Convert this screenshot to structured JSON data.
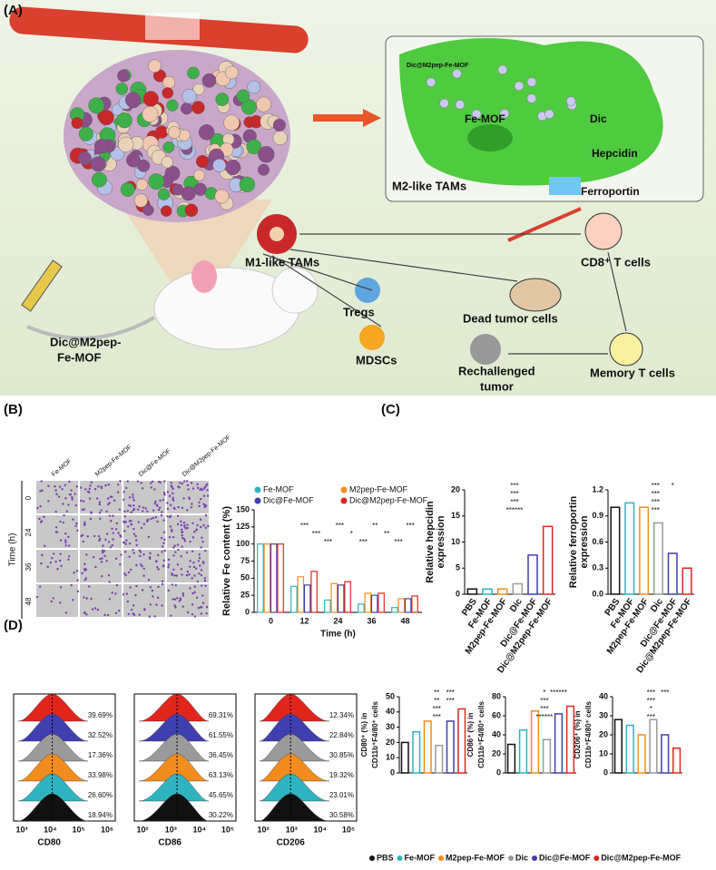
{
  "panel_labels": [
    "(A)",
    "(B)",
    "(C)",
    "(D)"
  ],
  "diagram": {
    "labels": [
      {
        "lines": [
          "Dic@M2pep-Fe-MOF"
        ]
      },
      {
        "lines": [
          "Fe-MOF"
        ]
      },
      {
        "lines": [
          "Dic"
        ]
      },
      {
        "lines": [
          "Hepcidin"
        ]
      },
      {
        "lines": [
          "M2-like TAMs"
        ]
      },
      {
        "lines": [
          "Ferroportin"
        ]
      },
      {
        "lines": [
          "M1-like TAMs"
        ]
      },
      {
        "lines": [
          "CD8⁺ T cells"
        ]
      },
      {
        "lines": [
          "Tregs"
        ]
      },
      {
        "lines": [
          "Dead tumor cells"
        ]
      },
      {
        "lines": [
          "MDSCs"
        ]
      },
      {
        "lines": [
          "Memory T cells"
        ]
      },
      {
        "lines": [
          "Rechallenged",
          "tumor"
        ]
      },
      {
        "lines": [
          "Dic@M2pep-",
          "Fe-MOF"
        ]
      }
    ]
  },
  "images_b": {
    "columns": [
      "Fe-MOF",
      "M2pep-Fe-MOF",
      "Dic@Fe-MOF",
      "Dic@M2pep-Fe-MOF"
    ],
    "rows": [
      "0",
      "24",
      "36",
      "48"
    ],
    "ylabel": "Time (h)"
  },
  "histograms_d": [
    {
      "xlabel": "CD80",
      "xticks": [
        "10³",
        "10⁴",
        "10⁵",
        "10⁶"
      ],
      "percents": [
        "39.69%",
        "32.52%",
        "17.36%",
        "33.98%",
        "26.60%",
        "18.94%"
      ]
    },
    {
      "xlabel": "CD86",
      "xticks": [
        "10²",
        "10³",
        "10⁴",
        "10⁵"
      ],
      "percents": [
        "69.31%",
        "61.55%",
        "36.45%",
        "63.13%",
        "45.65%",
        "30.22%"
      ]
    },
    {
      "xlabel": "CD206",
      "xticks": [
        "10²",
        "10³",
        "10⁴",
        "10⁵"
      ],
      "percents": [
        "12.34%",
        "22.84%",
        "30.85%",
        "19.32%",
        "23.01%",
        "30.58%"
      ]
    }
  ],
  "legend_d": [
    {
      "name": "PBS",
      "color": "#111111"
    },
    {
      "name": "Fe-MOF",
      "color": "#2fb3c0"
    },
    {
      "name": "M2pep-Fe-MOF",
      "color": "#f28c1e"
    },
    {
      "name": "Dic",
      "color": "#9a9a9a"
    },
    {
      "name": "Dic@Fe-MOF",
      "color": "#3f3fb0"
    },
    {
      "name": "Dic@M2pep-Fe-MOF",
      "color": "#e0261c"
    }
  ],
  "chart_data": [
    {
      "type": "bar",
      "xlabel": "Time (h)",
      "ylabel": [
        "Relative Fe content (%)"
      ],
      "categories": [
        "0",
        "12",
        "24",
        "36",
        "48"
      ],
      "series": [
        {
          "name": "Fe-MOF",
          "color": "#2fb3c0",
          "values": [
            100,
            38,
            18,
            12,
            7
          ]
        },
        {
          "name": "M2pep-Fe-MOF",
          "color": "#f28c1e",
          "values": [
            100,
            52,
            42,
            28,
            20
          ]
        },
        {
          "name": "Dic@Fe-MOF",
          "color": "#3f3fb0",
          "values": [
            100,
            40,
            40,
            25,
            20
          ]
        },
        {
          "name": "Dic@M2pep-Fe-MOF",
          "color": "#e0261c",
          "values": [
            100,
            60,
            45,
            28,
            24
          ]
        }
      ],
      "ylim": [
        0,
        150
      ],
      "yticks": [
        0,
        25,
        50,
        75,
        100,
        125,
        150
      ],
      "annotations": [
        "***",
        "***",
        "***",
        "***",
        "*",
        "***",
        "**",
        "**",
        "***",
        "***"
      ]
    },
    {
      "type": "bar",
      "ylabel": [
        "Relative hepcidin",
        "expression"
      ],
      "categories": [
        "PBS",
        "Fe-MOF",
        "M2pep-Fe-MOF",
        "Dic",
        "Dic@Fe-MOF",
        "Dic@M2pep-Fe-MOF"
      ],
      "values": [
        1,
        1,
        1,
        2,
        7.5,
        13
      ],
      "colors": [
        "#111111",
        "#2fb3c0",
        "#f28c1e",
        "#9a9a9a",
        "#3f3fb0",
        "#e0261c"
      ],
      "ylim": [
        0,
        20
      ],
      "yticks": [
        0,
        5,
        10,
        15,
        20
      ],
      "annotations": [
        "***",
        "***",
        "***",
        "******"
      ]
    },
    {
      "type": "bar",
      "ylabel": [
        "Relative ferroportin",
        "expression"
      ],
      "categories": [
        "PBS",
        "Fe-MOF",
        "M2pep-Fe-MOF",
        "Dic",
        "Dic@Fe-MOF",
        "Dic@M2pep-Fe-MOF"
      ],
      "values": [
        1,
        1.05,
        1,
        0.82,
        0.47,
        0.3
      ],
      "colors": [
        "#111111",
        "#2fb3c0",
        "#f28c1e",
        "#9a9a9a",
        "#3f3fb0",
        "#e0261c"
      ],
      "ylim": [
        0,
        1.2
      ],
      "yticks": [
        {
          "value": 0,
          "label": "0.0"
        },
        0.3,
        0.6,
        0.9,
        1.2
      ],
      "annotations": [
        "***",
        "***",
        "***",
        "***",
        "*"
      ]
    },
    {
      "type": "bar",
      "ylabel": [
        "CD80⁺ (%) in",
        "CD11b⁺F4/80⁺ cells"
      ],
      "values": [
        20,
        27,
        34,
        18,
        34,
        42
      ],
      "colors": [
        "#111111",
        "#2fb3c0",
        "#f28c1e",
        "#9a9a9a",
        "#3f3fb0",
        "#e0261c"
      ],
      "ylim": [
        0,
        50
      ],
      "yticks": [
        0,
        10,
        20,
        30,
        40,
        50
      ],
      "annotations": [
        "**",
        "**",
        "***",
        "***",
        "***",
        "***"
      ]
    },
    {
      "type": "bar",
      "ylabel": [
        "CD86⁺ (%) in",
        "CD11b⁺F4/80⁺ cells"
      ],
      "values": [
        30,
        45,
        65,
        35,
        62,
        70
      ],
      "colors": [
        "#111111",
        "#2fb3c0",
        "#f28c1e",
        "#9a9a9a",
        "#3f3fb0",
        "#e0261c"
      ],
      "ylim": [
        0,
        80
      ],
      "yticks": [
        0,
        20,
        40,
        60,
        80
      ],
      "annotations": [
        "*",
        "***",
        "***",
        "******",
        "******"
      ]
    },
    {
      "type": "bar",
      "ylabel": [
        "CD206⁺ (%) in",
        "CD11b⁺F4/80⁺ cells"
      ],
      "values": [
        28,
        25,
        20,
        28,
        20,
        13
      ],
      "colors": [
        "#111111",
        "#2fb3c0",
        "#f28c1e",
        "#9a9a9a",
        "#3f3fb0",
        "#e0261c"
      ],
      "ylim": [
        0,
        40
      ],
      "yticks": [
        0,
        10,
        20,
        30,
        40
      ],
      "annotations": [
        "***",
        "***",
        "*",
        "***",
        "***"
      ]
    }
  ]
}
